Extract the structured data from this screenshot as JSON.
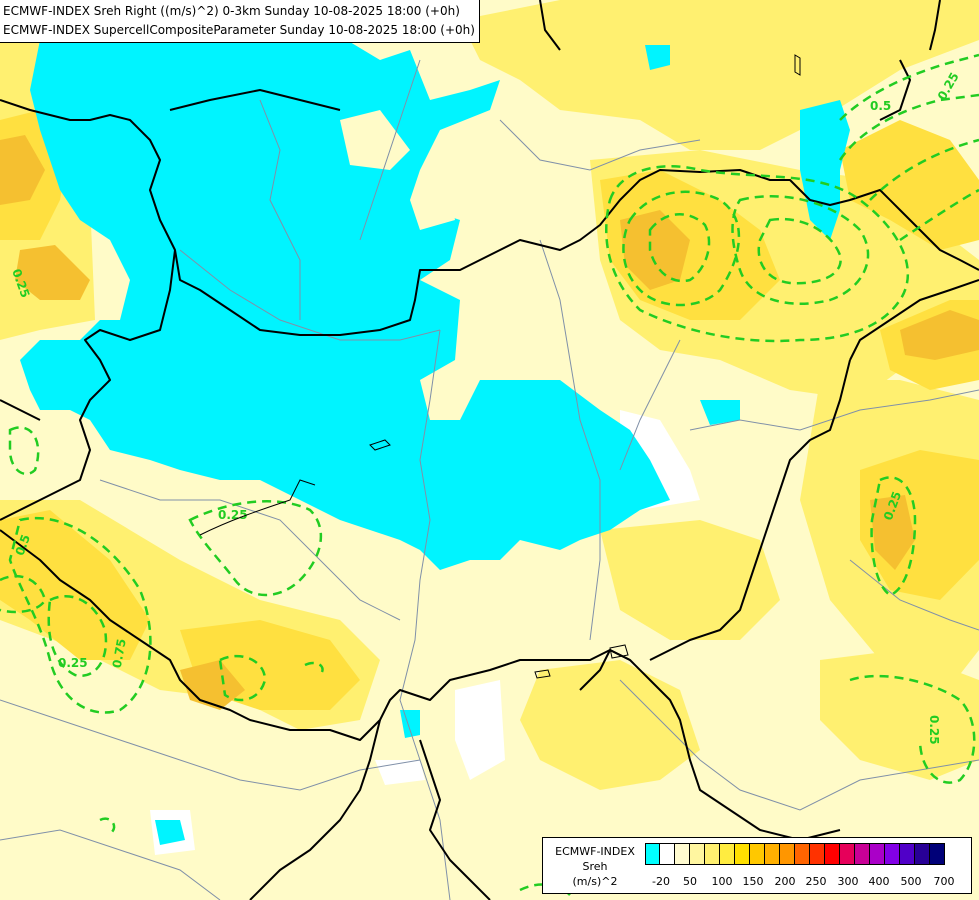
{
  "titles": {
    "line1": "ECMWF-INDEX Sreh Right ((m/s)^2) 0-3km Sunday 10-08-2025 18:00 (+0h)",
    "line2": "ECMWF-INDEX SupercellCompositeParameter Sunday 10-08-2025 18:00 (+0h)"
  },
  "legend": {
    "label_line1": "ECMWF-INDEX",
    "label_line2": "Sreh",
    "label_line3": "(m/s)^2",
    "colors": [
      "#00ffff",
      "#ffffff",
      "#fffbd0",
      "#fff6a0",
      "#fff070",
      "#ffec40",
      "#ffe000",
      "#ffc800",
      "#ffb000",
      "#ff9600",
      "#ff6400",
      "#ff3200",
      "#ff0000",
      "#e6005a",
      "#c80096",
      "#aa00c8",
      "#8200e6",
      "#5000c8",
      "#280096",
      "#000078"
    ],
    "ticks": [
      "-20",
      "50",
      "100",
      "150",
      "200",
      "250",
      "300",
      "400",
      "500",
      "700"
    ]
  },
  "contour_labels": [
    "0.25",
    "0.25",
    "0.25",
    "0.75",
    "0.25",
    "0.25",
    "0.25",
    "0.5",
    "0.5"
  ],
  "colors": {
    "cyan": "#00f4ff",
    "pale_yellow": "#fffbc8",
    "yellow": "#fff070",
    "gold": "#ffe040",
    "orange": "#f5c030",
    "contour_green": "#22cc22",
    "border_black": "#000000",
    "river_grey": "#8090a8"
  }
}
